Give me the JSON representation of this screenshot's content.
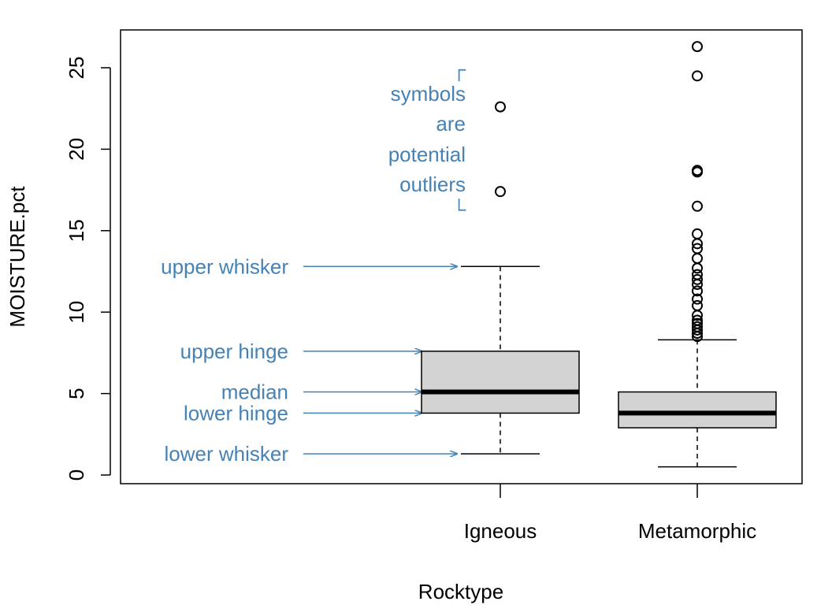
{
  "chart_data": {
    "type": "box",
    "xlabel": "Rocktype",
    "ylabel": "MOISTURE.pct",
    "ylim": [
      0,
      27
    ],
    "yticks": [
      0,
      5,
      10,
      15,
      20,
      25
    ],
    "categories": [
      "Igneous",
      "Metamorphic"
    ],
    "boxes": [
      {
        "category": "Igneous",
        "lower_whisker": 1.3,
        "lower_hinge": 3.8,
        "median": 5.1,
        "upper_hinge": 7.6,
        "upper_whisker": 12.8,
        "outliers": [
          17.4,
          22.6
        ]
      },
      {
        "category": "Metamorphic",
        "lower_whisker": 0.5,
        "lower_hinge": 2.9,
        "median": 3.8,
        "upper_hinge": 5.1,
        "upper_whisker": 8.3,
        "outliers": [
          8.5,
          8.7,
          8.9,
          9.1,
          9.3,
          9.5,
          9.8,
          10.4,
          10.8,
          11.3,
          11.7,
          12.0,
          12.3,
          12.7,
          13.3,
          13.9,
          14.2,
          14.8,
          16.5,
          18.6,
          18.7,
          24.5,
          26.3
        ]
      }
    ],
    "annotations": {
      "color": "#4682b4",
      "labels": [
        {
          "text": "upper whisker",
          "target": "upper_whisker"
        },
        {
          "text": "upper hinge",
          "target": "upper_hinge"
        },
        {
          "text": "median",
          "target": "median"
        },
        {
          "text": "lower hinge",
          "target": "lower_hinge"
        },
        {
          "text": "lower whisker",
          "target": "lower_whisker"
        }
      ],
      "outlier_note": {
        "bracket_top": "┌",
        "lines": [
          "symbols",
          "are",
          "potential",
          "outliers"
        ],
        "bracket_bottom": "└"
      }
    },
    "box_fill": "#d3d3d3",
    "grid": false,
    "legend": "none"
  }
}
